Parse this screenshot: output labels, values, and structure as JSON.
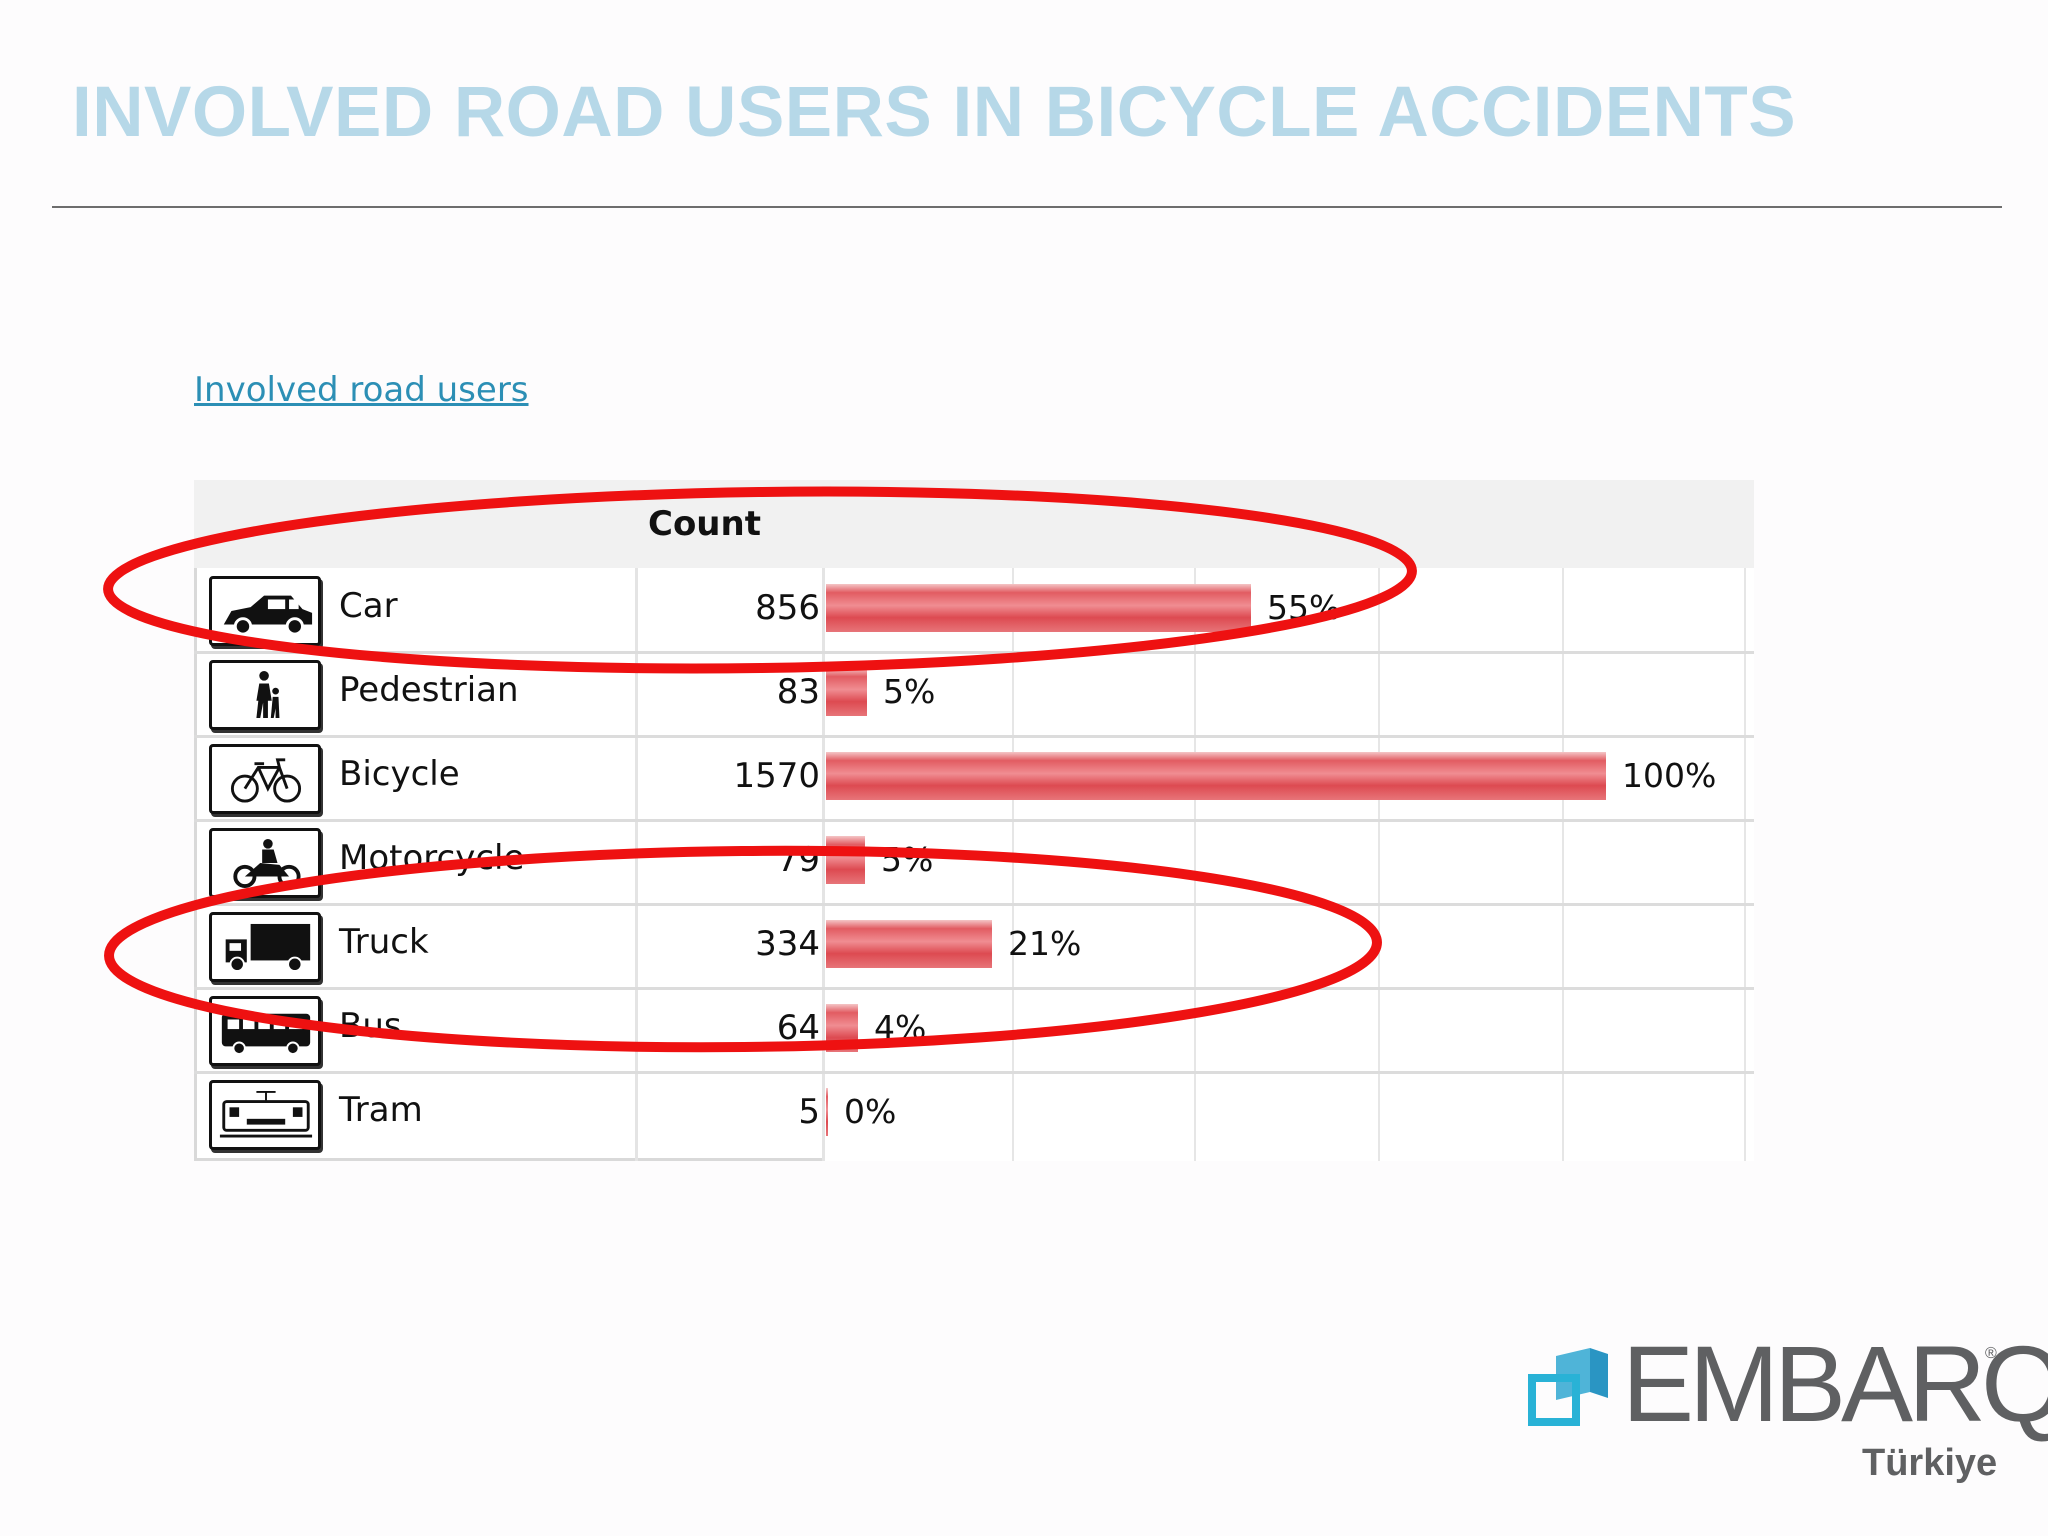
{
  "slide": {
    "title": "INVOLVED ROAD USERS IN BICYCLE ACCIDENTS",
    "link_text": "Involved road users",
    "title_color": "#b6d8e8",
    "link_color": "#2c8fb5"
  },
  "chart_data": {
    "type": "bar",
    "orientation": "horizontal",
    "column_header": "Count",
    "categories": [
      "Car",
      "Pedestrian",
      "Bicycle",
      "Motorcycle",
      "Truck",
      "Bus",
      "Tram"
    ],
    "icons": [
      "car-icon",
      "pedestrian-icon",
      "bicycle-icon",
      "motorcycle-icon",
      "truck-icon",
      "bus-icon",
      "tram-icon"
    ],
    "values": [
      856,
      83,
      1570,
      79,
      334,
      64,
      5
    ],
    "percent_labels": [
      "55%",
      "5%",
      "100%",
      "5%",
      "21%",
      "4%",
      "0%"
    ],
    "bar_color": "#e25c62",
    "xlim": [
      0,
      1570
    ],
    "highlighted_categories": [
      "Car",
      "Truck"
    ],
    "highlight_color": "#ee1111"
  },
  "logo": {
    "name": "EMBARQ",
    "subtitle": "Türkiye",
    "registered": "®",
    "mark_color": "#29b2d6",
    "text_color": "#5f6062"
  }
}
